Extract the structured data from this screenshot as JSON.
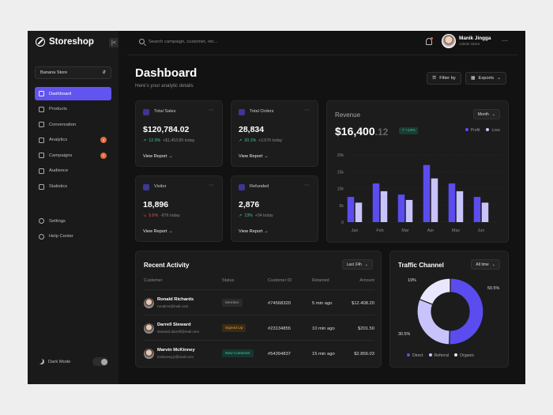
{
  "app": {
    "name": "Storeshop",
    "collapse_glyph": "|<"
  },
  "sidebar": {
    "store_selector": "Banana Store",
    "items": [
      {
        "label": "Dashboard",
        "active": true
      },
      {
        "label": "Products"
      },
      {
        "label": "Conversation"
      },
      {
        "label": "Analytics",
        "badge": "3"
      },
      {
        "label": "Campaigns",
        "badge": "1"
      },
      {
        "label": "Audience"
      },
      {
        "label": "Statistics"
      }
    ],
    "bottom_items": [
      {
        "label": "Settings"
      },
      {
        "label": "Help Center"
      }
    ],
    "dark_mode_label": "Dark Mode"
  },
  "topbar": {
    "search_placeholder": "Search campaign, customer, etc...",
    "user_name": "Manik Jingga",
    "user_role": "Admin Store"
  },
  "header": {
    "title": "Dashboard",
    "subtitle": "Here's your analytic details",
    "filter_label": "Filter by",
    "export_label": "Exports"
  },
  "stats": [
    {
      "label": "Total Sales",
      "value": "$120,784.02",
      "change": "12.3%",
      "direction": "up",
      "delta": "+$1,453.89 today",
      "link": "View Report"
    },
    {
      "label": "Total Orders",
      "value": "28,834",
      "change": "20.1%",
      "direction": "up",
      "delta": "+2,676 today",
      "link": "View Report"
    },
    {
      "label": "Visitor",
      "value": "18,896",
      "change": "5.6%",
      "direction": "down",
      "delta": "-876 today",
      "link": "View Report"
    },
    {
      "label": "Refunded",
      "value": "2,876",
      "change": "13%",
      "direction": "up",
      "delta": "+34 today",
      "link": "View Report"
    }
  ],
  "revenue": {
    "title": "Revenue",
    "period": "Month",
    "value_main": "$16,400",
    "value_decimal": ".12",
    "badge": "+10%",
    "legend": [
      "Profit",
      "Loss"
    ]
  },
  "chart_data": {
    "type": "bar",
    "categories": [
      "Jan",
      "Feb",
      "Mar",
      "Apr",
      "May",
      "Jun"
    ],
    "series": [
      {
        "name": "Profit",
        "values": [
          7.5,
          11.5,
          8.2,
          17,
          11.5,
          7.5
        ]
      },
      {
        "name": "Loss",
        "values": [
          5.8,
          9.2,
          6.6,
          13,
          9.2,
          5.8
        ]
      }
    ],
    "yticks": [
      "0",
      "5k",
      "10k",
      "15k",
      "20k"
    ],
    "ylim": [
      0,
      20
    ],
    "colors": {
      "Profit": "#5b4cf0",
      "Loss": "#c8c3fa"
    }
  },
  "activity": {
    "title": "Recent Activity",
    "period": "Last 24h",
    "columns": [
      "Customer",
      "Status",
      "Customer ID",
      "Retained",
      "Amount"
    ],
    "rows": [
      {
        "name": "Ronald Richards",
        "email": "ronalrcs@mail.com",
        "status": "Member",
        "status_type": "member",
        "id": "#74568320",
        "retained": "5 min ago",
        "amount": "$12.408.20"
      },
      {
        "name": "Darrell Steward",
        "email": "steward.darrell@mail.com",
        "status": "Signed Up",
        "status_type": "signed",
        "id": "#23134855",
        "retained": "10 min ago",
        "amount": "$201.50"
      },
      {
        "name": "Marvin McKinney",
        "email": "mckinney.jr@mail.com",
        "status": "New Customer",
        "status_type": "new",
        "id": "#54394837",
        "retained": "15 min ago",
        "amount": "$2.856.03"
      }
    ]
  },
  "traffic": {
    "title": "Traffic Channel",
    "period": "All time",
    "labels": [
      "50.5%",
      "30.5%",
      "19%"
    ],
    "legend": [
      "Direct",
      "Referral",
      "Organic"
    ]
  },
  "traffic_chart": {
    "type": "pie",
    "categories": [
      "Direct",
      "Referral",
      "Organic"
    ],
    "values": [
      50.5,
      30.5,
      19
    ],
    "colors": [
      "#5b4cf0",
      "#c8c3fa",
      "#e9e7fd"
    ]
  }
}
